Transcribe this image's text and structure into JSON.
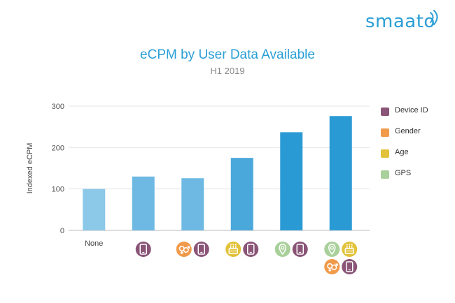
{
  "brand": {
    "logo_text": "smaato",
    "color": "#2a9fd6"
  },
  "chart_data": {
    "type": "bar",
    "title": "eCPM by User Data Available",
    "subtitle": "H1 2019",
    "xlabel": "",
    "ylabel": "Indexed eCPM",
    "ylim": [
      0,
      300
    ],
    "yticks": [
      0,
      100,
      200,
      300
    ],
    "grid": true,
    "categories": [
      "None",
      "Device ID",
      "Gender + Device ID",
      "Age + Device ID",
      "GPS + Device ID",
      "GPS + Age + Gender + Device ID"
    ],
    "category_tick_labels": [
      "None",
      "",
      "",
      "",
      "",
      ""
    ],
    "category_icons": [
      [],
      [
        [
          "device-id"
        ]
      ],
      [
        [
          "gender",
          "device-id"
        ]
      ],
      [
        [
          "age",
          "device-id"
        ]
      ],
      [
        [
          "gps",
          "device-id"
        ]
      ],
      [
        [
          "gps",
          "age"
        ],
        [
          "gender",
          "device-id"
        ]
      ]
    ],
    "values": [
      100,
      130,
      126,
      175,
      237,
      276
    ],
    "bar_colors": [
      "#8cc8e8",
      "#6eb9e3",
      "#6eb9e3",
      "#4aa8da",
      "#2a9ad4",
      "#2a9ad4"
    ],
    "legend_position": "right",
    "legend": [
      {
        "key": "device-id",
        "label": "Device ID",
        "color": "#8a5577"
      },
      {
        "key": "gender",
        "label": "Gender",
        "color": "#f09a4a"
      },
      {
        "key": "age",
        "label": "Age",
        "color": "#e2c23a"
      },
      {
        "key": "gps",
        "label": "GPS",
        "color": "#a9d09a"
      }
    ]
  }
}
